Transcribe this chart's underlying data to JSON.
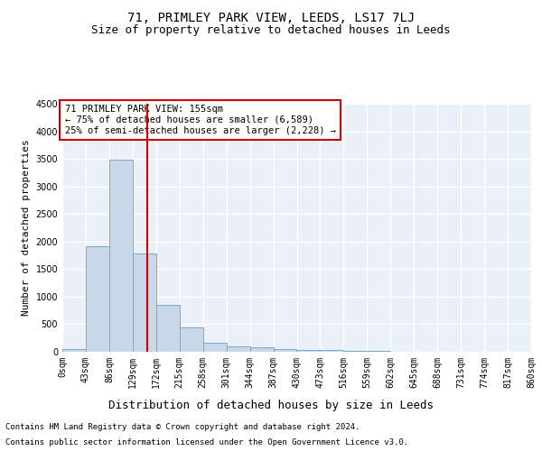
{
  "title": "71, PRIMLEY PARK VIEW, LEEDS, LS17 7LJ",
  "subtitle": "Size of property relative to detached houses in Leeds",
  "xlabel": "Distribution of detached houses by size in Leeds",
  "ylabel": "Number of detached properties",
  "footer_line1": "Contains HM Land Registry data © Crown copyright and database right 2024.",
  "footer_line2": "Contains public sector information licensed under the Open Government Licence v3.0.",
  "annotation_line1": "71 PRIMLEY PARK VIEW: 155sqm",
  "annotation_line2": "← 75% of detached houses are smaller (6,589)",
  "annotation_line3": "25% of semi-detached houses are larger (2,228) →",
  "bar_edges": [
    0,
    43,
    86,
    129,
    172,
    215,
    258,
    301,
    344,
    387,
    430,
    473,
    516,
    559,
    602,
    645,
    688,
    731,
    774,
    817,
    860
  ],
  "bar_values": [
    50,
    1920,
    3490,
    1780,
    850,
    450,
    165,
    100,
    80,
    55,
    40,
    30,
    15,
    10,
    8,
    5,
    4,
    3,
    2,
    1
  ],
  "bar_color": "#c8d8e8",
  "bar_edge_color": "#7aaac8",
  "vline_x": 155,
  "vline_color": "#cc0000",
  "ylim": [
    0,
    4500
  ],
  "yticks": [
    0,
    500,
    1000,
    1500,
    2000,
    2500,
    3000,
    3500,
    4000,
    4500
  ],
  "bg_color": "#eaf0f8",
  "grid_color": "#ffffff",
  "title_fontsize": 10,
  "subtitle_fontsize": 9,
  "ylabel_fontsize": 8,
  "xlabel_fontsize": 9,
  "tick_fontsize": 7,
  "annotation_fontsize": 7.5,
  "footer_fontsize": 6.5
}
